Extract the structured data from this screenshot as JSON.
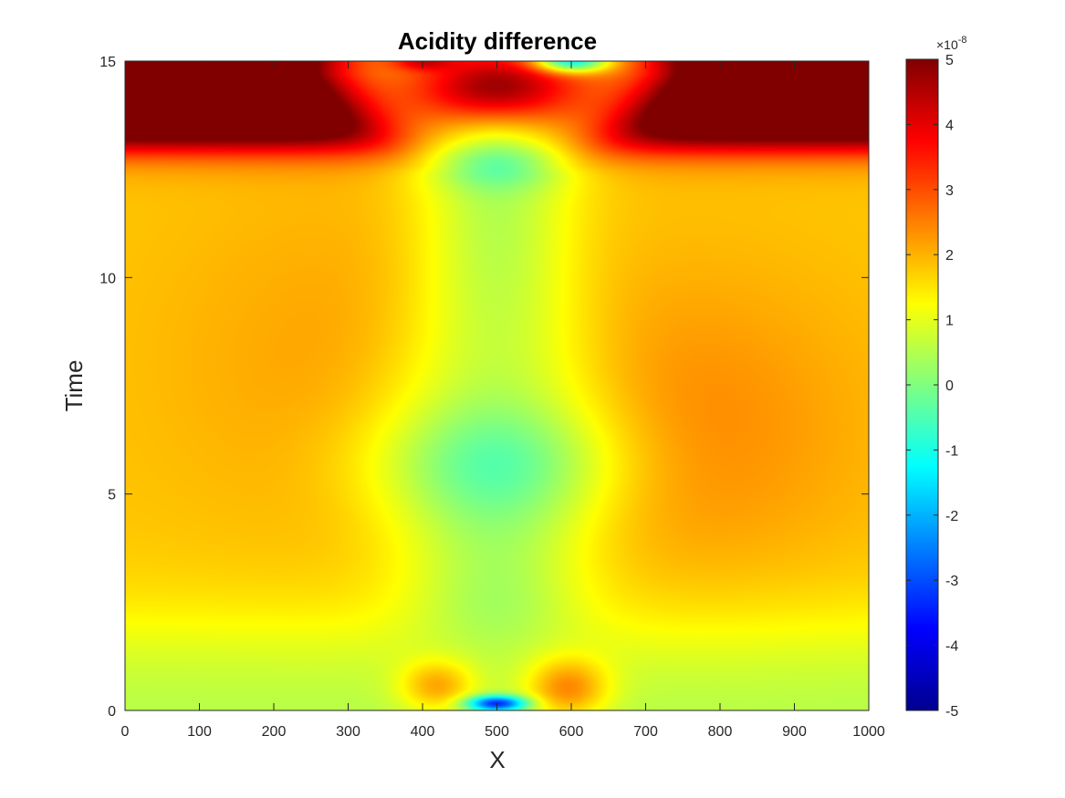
{
  "chart_data": {
    "type": "heatmap",
    "title": "Acidity difference",
    "xlabel": "X",
    "ylabel": "Time",
    "xlim": [
      0,
      1000
    ],
    "ylim": [
      0,
      15
    ],
    "xticks": [
      "0",
      "100",
      "200",
      "300",
      "400",
      "500",
      "600",
      "700",
      "800",
      "900",
      "1000"
    ],
    "yticks": [
      "0",
      "5",
      "10",
      "15"
    ],
    "colorbar": {
      "colormap": "jet",
      "clim": [
        -5,
        5
      ],
      "ticks": [
        "-5",
        "-4",
        "-3",
        "-2",
        "-1",
        "0",
        "1",
        "2",
        "3",
        "4",
        "5"
      ],
      "exponent_prefix": "×10",
      "exponent": "-8",
      "placement": "right"
    },
    "features": [
      {
        "x": 500,
        "y": 5.5,
        "value": -0.8
      },
      {
        "x": 500,
        "y": 12.6,
        "value": -0.6
      },
      {
        "x": 500,
        "y": 0.15,
        "value": -2.6
      },
      {
        "x": 590,
        "y": 14.95,
        "value": -1.0
      },
      {
        "x": 420,
        "y": 0.6,
        "value": 2.3
      },
      {
        "x": 590,
        "y": 0.55,
        "value": 2.6
      },
      {
        "x": 720,
        "y": 6.5,
        "value": 2.3
      },
      {
        "x": 150,
        "y": 14.0,
        "value": 5.0
      },
      {
        "x": 850,
        "y": 14.0,
        "value": 5.0
      },
      {
        "x": 500,
        "y": 14.3,
        "value": 3.8
      },
      {
        "x": 0,
        "y": 0.5,
        "value": 0.4
      },
      {
        "x": 1000,
        "y": 0.5,
        "value": 0.4
      },
      {
        "x": 0,
        "y": 4.0,
        "value": 1.2
      }
    ]
  }
}
